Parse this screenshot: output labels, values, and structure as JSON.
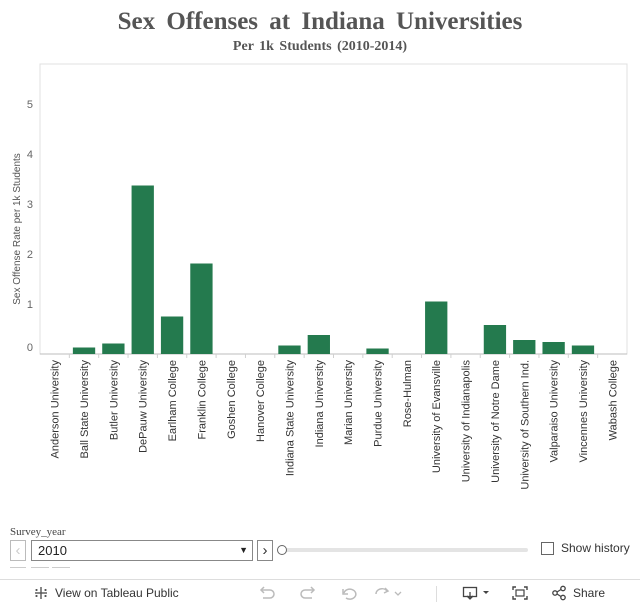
{
  "chart_data": {
    "type": "bar",
    "title": "Sex Offenses at Indiana Universities",
    "subtitle": "Per 1k Students (2010-2014)",
    "xlabel": "",
    "ylabel": "Sex Offense Rate per 1k Students",
    "ylim": [
      0,
      5.8
    ],
    "yticks": [
      0,
      1,
      2,
      3,
      4,
      5
    ],
    "bar_color": "#247a4e",
    "grid": false,
    "categories": [
      "Anderson University",
      "Ball State University",
      "Butler University",
      "DePauw University",
      "Earlham College",
      "Franklin College",
      "Goshen College",
      "Hanover College",
      "Indiana State University",
      "Indiana University",
      "Marian University",
      "Purdue University",
      "Rose-Hulman",
      "University of Evansville",
      "University of Indianapolis",
      "University of Notre Dame",
      "University of Southern Ind.",
      "Valparaiso University",
      "Vincennes University",
      "Wabash College"
    ],
    "values": [
      0,
      0.13,
      0.21,
      3.37,
      0.75,
      1.81,
      0,
      0,
      0.17,
      0.38,
      0,
      0.11,
      0,
      1.05,
      0,
      0.58,
      0.28,
      0.24,
      0.17,
      0
    ]
  },
  "filter": {
    "label": "Survey_year",
    "selected": "2010",
    "prev_icon": "chevron-left-icon",
    "next_icon": "chevron-right-icon",
    "show_history_label": "Show history"
  },
  "toolbar": {
    "view_label": "View on Tableau Public",
    "share_label": "Share"
  }
}
